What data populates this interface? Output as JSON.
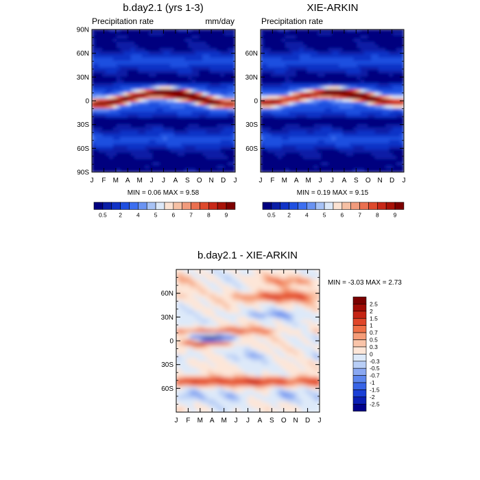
{
  "colors": {
    "precip_scale": [
      "#00007f",
      "#0a1ea6",
      "#1133c6",
      "#1f4fe0",
      "#3d6ff0",
      "#6a93f2",
      "#a7c2f5",
      "#dce8f8",
      "#fbe2d2",
      "#f6c0a4",
      "#f19b7c",
      "#ea7050",
      "#de4a2d",
      "#c82818",
      "#a81208",
      "#7d0000"
    ],
    "diff_scale": [
      "#00008b",
      "#0a1eb4",
      "#1a3fd6",
      "#3864e6",
      "#5d86ee",
      "#8aa8f2",
      "#b8cef6",
      "#dde9f9",
      "#fde6d8",
      "#f9c4a9",
      "#f59c78",
      "#ef6f47",
      "#e0462a",
      "#c52414",
      "#a00b05",
      "#7a0000"
    ]
  },
  "months": [
    "J",
    "F",
    "M",
    "A",
    "M",
    "J",
    "J",
    "A",
    "S",
    "O",
    "N",
    "D",
    "J"
  ],
  "chart_data": [
    {
      "type": "heatmap",
      "title": "b.day2.1 (yrs 1-3)",
      "left_label": "Precipitation rate",
      "right_label": "mm/day",
      "xlabel": "",
      "ylabel": "",
      "y_ticks": [
        "90N",
        "60N",
        "30N",
        "0",
        "30S",
        "60S",
        "90S"
      ],
      "ylim": [
        -90,
        90
      ],
      "stats": "MIN =  0.06 MAX =   9.58",
      "max_value": 9.58,
      "band_lat": {
        "jan": -5,
        "jul": 10
      },
      "colorbar_labels": [
        "0.5",
        "2",
        "4",
        "5",
        "6",
        "7",
        "8",
        "9"
      ],
      "levels": [
        0.5,
        1,
        2,
        3,
        4,
        4.5,
        5,
        5.5,
        6,
        6.5,
        7,
        7.5,
        8,
        8.5,
        9
      ]
    },
    {
      "type": "heatmap",
      "title": "XIE-ARKIN",
      "left_label": "Precipitation rate",
      "right_label": "",
      "xlabel": "",
      "ylabel": "",
      "y_ticks": [
        "60N",
        "30N",
        "0",
        "30S",
        "60S"
      ],
      "ylim": [
        -90,
        90
      ],
      "stats": "MIN =  0.19 MAX =   9.15",
      "max_value": 9.15,
      "band_lat": {
        "jan": -3,
        "jul": 10
      },
      "colorbar_labels": [
        "0.5",
        "2",
        "4",
        "5",
        "6",
        "7",
        "8",
        "9"
      ],
      "levels": [
        0.5,
        1,
        2,
        3,
        4,
        4.5,
        5,
        5.5,
        6,
        6.5,
        7,
        7.5,
        8,
        8.5,
        9
      ]
    },
    {
      "type": "heatmap",
      "title": "b.day2.1 - XIE-ARKIN",
      "xlabel": "",
      "ylabel": "",
      "y_ticks": [
        "60N",
        "30N",
        "0",
        "30S",
        "60S"
      ],
      "ylim": [
        -90,
        90
      ],
      "stats": "MIN = -3.03 MAX =   2.73",
      "min_value": -3.03,
      "max_value": 2.73,
      "colorbar_labels": [
        "2.5",
        "2",
        "1.5",
        "1",
        "0.7",
        "0.5",
        "0.3",
        "0",
        "-0.3",
        "-0.5",
        "-0.7",
        "-1",
        "-1.5",
        "-2",
        "-2.5"
      ]
    }
  ]
}
